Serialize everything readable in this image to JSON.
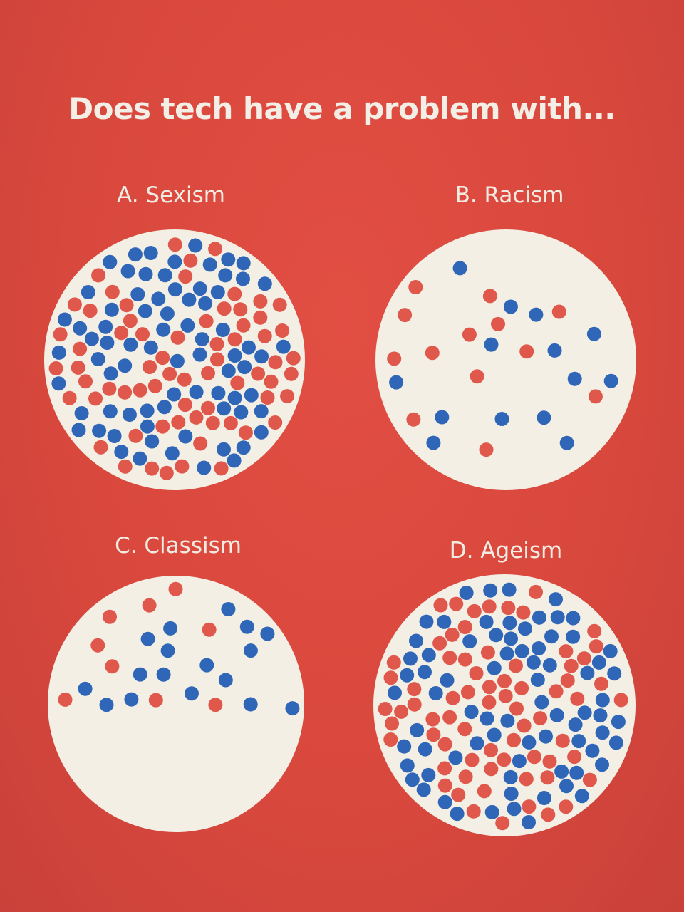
{
  "poster": {
    "title": "Does tech have a problem with...",
    "colors": {
      "background": "#d9483d",
      "circle": "#f3efe4",
      "red_dot": "#e0574b",
      "blue_dot": "#2f66b8"
    },
    "options": [
      {
        "label": "A. Sexism",
        "red_dots": 80,
        "blue_dots": 85
      },
      {
        "label": "B. Racism",
        "red_dots": 13,
        "blue_dots": 14
      },
      {
        "label": "C. Classism",
        "red_dots": 9,
        "blue_dots": 17
      },
      {
        "label": "D. Ageism",
        "red_dots": 80,
        "blue_dots": 90
      }
    ]
  }
}
